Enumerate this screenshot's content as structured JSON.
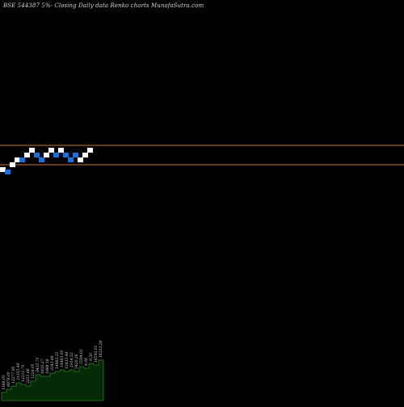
{
  "chart_data": {
    "type": "renko",
    "title": "BSE 544387 5%-  Closing Daily data  Renko  charts MunafaSutra.com",
    "xlabel": "",
    "ylabel": "",
    "grid": false,
    "legend": "none",
    "reference_lines": [
      {
        "price": 1.0,
        "color": "#c8742a"
      },
      {
        "price": -1.0,
        "color": "#c8742a"
      }
    ],
    "bricks": [
      {
        "level": -3,
        "dir": "up"
      },
      {
        "level": -3.5,
        "dir": "down"
      },
      {
        "level": -2,
        "dir": "up"
      },
      {
        "level": -1,
        "dir": "up"
      },
      {
        "level": -1,
        "dir": "down"
      },
      {
        "level": 0,
        "dir": "up"
      },
      {
        "level": 1,
        "dir": "up"
      },
      {
        "level": 0,
        "dir": "down"
      },
      {
        "level": -1,
        "dir": "down"
      },
      {
        "level": 0,
        "dir": "up"
      },
      {
        "level": 1,
        "dir": "up"
      },
      {
        "level": 0,
        "dir": "down"
      },
      {
        "level": 1,
        "dir": "up"
      },
      {
        "level": 0,
        "dir": "down"
      },
      {
        "level": -1,
        "dir": "down"
      },
      {
        "level": 0,
        "dir": "down"
      },
      {
        "level": -1,
        "dir": "up"
      },
      {
        "level": 0,
        "dir": "up"
      },
      {
        "level": 1,
        "dir": "up"
      }
    ],
    "volume": [
      {
        "label": "1168.05",
        "value": 10
      },
      {
        "label": "8978.00",
        "value": 14
      },
      {
        "label": "12277.95",
        "value": 18
      },
      {
        "label": "21355.49",
        "value": 22
      },
      {
        "label": "12211.70",
        "value": 20
      },
      {
        "label": "2251.86",
        "value": 18
      },
      {
        "label": "1224.05",
        "value": 24
      },
      {
        "label": "9435.75",
        "value": 32
      },
      {
        "label": "1832.27",
        "value": 30
      },
      {
        "label": "1988.18",
        "value": 30
      },
      {
        "label": "3343.46",
        "value": 34
      },
      {
        "label": "14463.25",
        "value": 36
      },
      {
        "label": "14463.95",
        "value": 38
      },
      {
        "label": "12433.49",
        "value": 36
      },
      {
        "label": "1914.52",
        "value": 38
      },
      {
        "label": "5420.26",
        "value": 36
      },
      {
        "label": "5594.03",
        "value": 42
      },
      {
        "label": "4.08",
        "value": 40
      },
      {
        "label": "9.30",
        "value": 46
      },
      {
        "label": "16592.01",
        "value": 44
      },
      {
        "label": "16323.28",
        "value": 50
      }
    ],
    "colors": {
      "up_brick": "#ffffff",
      "down_brick": "#1f6fd6",
      "reference_line": "#c8742a",
      "volume_fill": "#062a06",
      "volume_line": "#1f6a1f",
      "volume_label": "#d0d0d0"
    }
  }
}
